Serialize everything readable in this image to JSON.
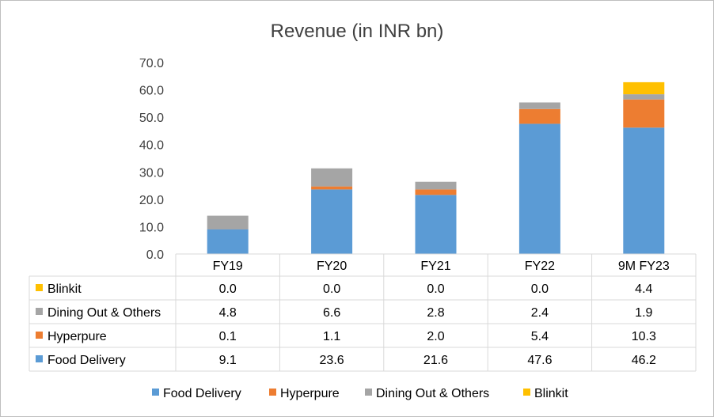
{
  "chart_data": {
    "type": "bar",
    "stacked": true,
    "title": "Revenue (in INR bn)",
    "categories": [
      "FY19",
      "FY20",
      "FY21",
      "FY22",
      "9M FY23"
    ],
    "ylim": [
      0,
      70
    ],
    "yticks": [
      "0.0",
      "10.0",
      "20.0",
      "30.0",
      "40.0",
      "50.0",
      "60.0",
      "70.0"
    ],
    "grid": false,
    "legend_position": "bottom",
    "series": [
      {
        "name": "Food Delivery",
        "color": "#5b9bd5",
        "values": [
          9.1,
          23.6,
          21.6,
          47.6,
          46.2
        ],
        "labels": [
          "9.1",
          "23.6",
          "21.6",
          "47.6",
          "46.2"
        ]
      },
      {
        "name": "Hyperpure",
        "color": "#ed7d31",
        "values": [
          0.1,
          1.1,
          2.0,
          5.4,
          10.3
        ],
        "labels": [
          "0.1",
          "1.1",
          "2.0",
          "5.4",
          "10.3"
        ]
      },
      {
        "name": "Dining Out & Others",
        "color": "#a5a5a5",
        "values": [
          4.8,
          6.6,
          2.8,
          2.4,
          1.9
        ],
        "labels": [
          "4.8",
          "6.6",
          "2.8",
          "2.4",
          "1.9"
        ]
      },
      {
        "name": "Blinkit",
        "color": "#ffc000",
        "values": [
          0.0,
          0.0,
          0.0,
          0.0,
          4.4
        ],
        "labels": [
          "0.0",
          "0.0",
          "0.0",
          "0.0",
          "4.4"
        ]
      }
    ]
  }
}
